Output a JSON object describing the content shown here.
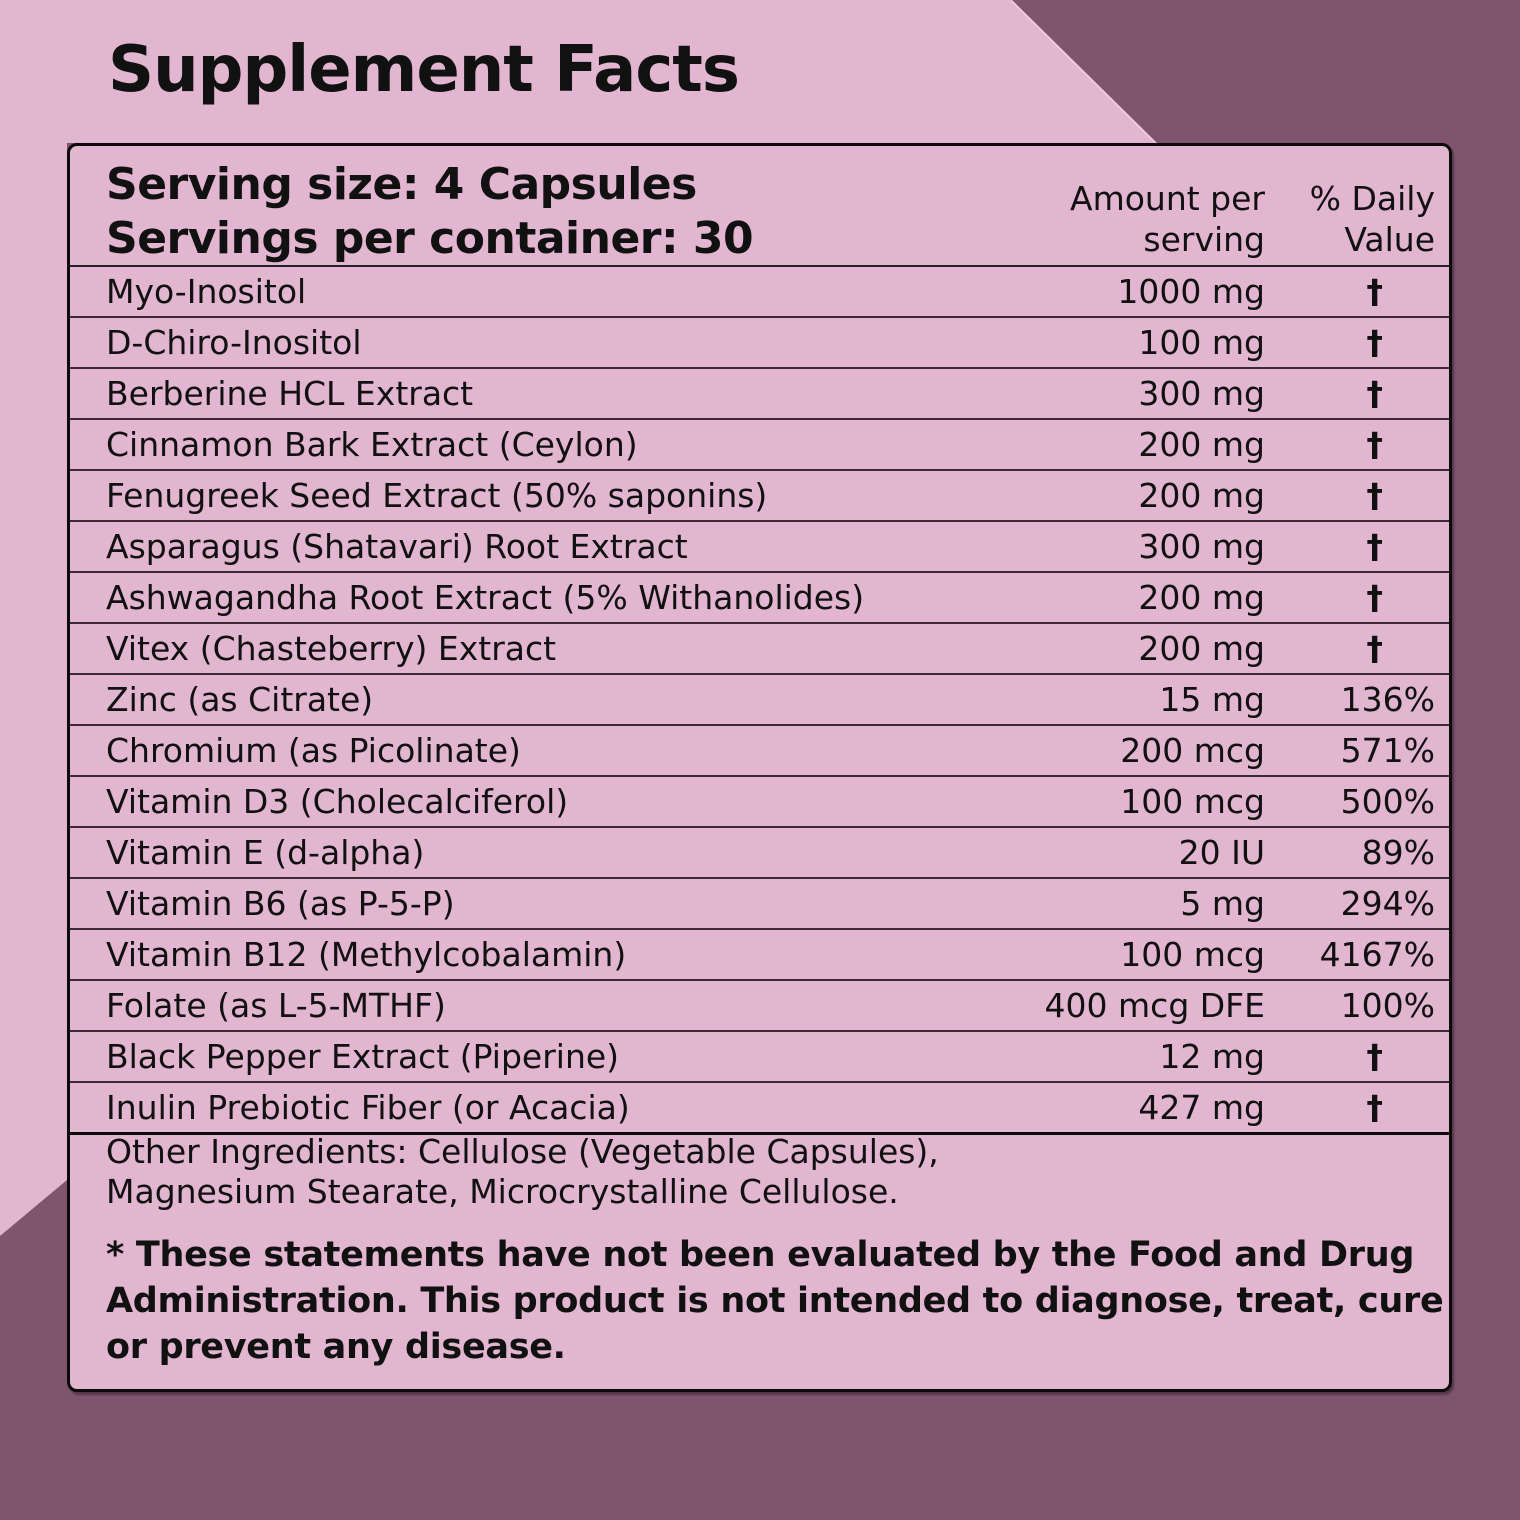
{
  "title": "Supplement Facts",
  "header": {
    "serving_size": "Serving size: 4 Capsules",
    "servings_per_container": "Servings per container: 30",
    "amount_col_line1": "Amount per",
    "amount_col_line2": "serving",
    "dv_col_line1": "% Daily",
    "dv_col_line2": "Value"
  },
  "ingredients": [
    {
      "name": "Myo-Inositol",
      "amount": "1000 mg",
      "dv": "†"
    },
    {
      "name": "D-Chiro-Inositol",
      "amount": "100 mg",
      "dv": "†"
    },
    {
      "name": "Berberine HCL Extract",
      "amount": "300 mg",
      "dv": "†"
    },
    {
      "name": "Cinnamon Bark Extract (Ceylon)",
      "amount": "200 mg",
      "dv": "†"
    },
    {
      "name": "Fenugreek Seed Extract (50% saponins)",
      "amount": "200 mg",
      "dv": "†"
    },
    {
      "name": "Asparagus (Shatavari) Root Extract",
      "amount": "300 mg",
      "dv": "†"
    },
    {
      "name": "Ashwagandha Root Extract (5% Withanolides)",
      "amount": "200 mg",
      "dv": "†"
    },
    {
      "name": "Vitex (Chasteberry) Extract",
      "amount": "200 mg",
      "dv": "†"
    },
    {
      "name": "Zinc (as Citrate)",
      "amount": "15 mg",
      "dv": "136%"
    },
    {
      "name": "Chromium (as Picolinate)",
      "amount": "200 mcg",
      "dv": "571%"
    },
    {
      "name": "Vitamin D3 (Cholecalciferol)",
      "amount": "100 mcg",
      "dv": "500%"
    },
    {
      "name": "Vitamin E (d-alpha)",
      "amount": "20 IU",
      "dv": "89%"
    },
    {
      "name": "Vitamin B6 (as P-5-P)",
      "amount": "5 mg",
      "dv": "294%"
    },
    {
      "name": "Vitamin B12 (Methylcobalamin)",
      "amount": "100 mcg",
      "dv": "4167%"
    },
    {
      "name": "Folate (as L-5-MTHF)",
      "amount": "400 mcg DFE",
      "dv": "100%"
    },
    {
      "name": "Black Pepper Extract (Piperine)",
      "amount": "12 mg",
      "dv": "†"
    },
    {
      "name": "Inulin Prebiotic Fiber (or Acacia)",
      "amount": "427 mg",
      "dv": "†"
    }
  ],
  "other_ingredients": {
    "line1": "Other Ingredients: Cellulose (Vegetable Capsules),",
    "line2": "Magnesium Stearate, Microcrystalline Cellulose."
  },
  "disclaimer": "* These statements have not been evaluated by the Food and Drug Administration. This product is not intended to diagnose, treat, cure or prevent any disease.",
  "colors": {
    "light_pink": "#E2B5D0",
    "mauve": "#80546E",
    "text": "#111111"
  }
}
